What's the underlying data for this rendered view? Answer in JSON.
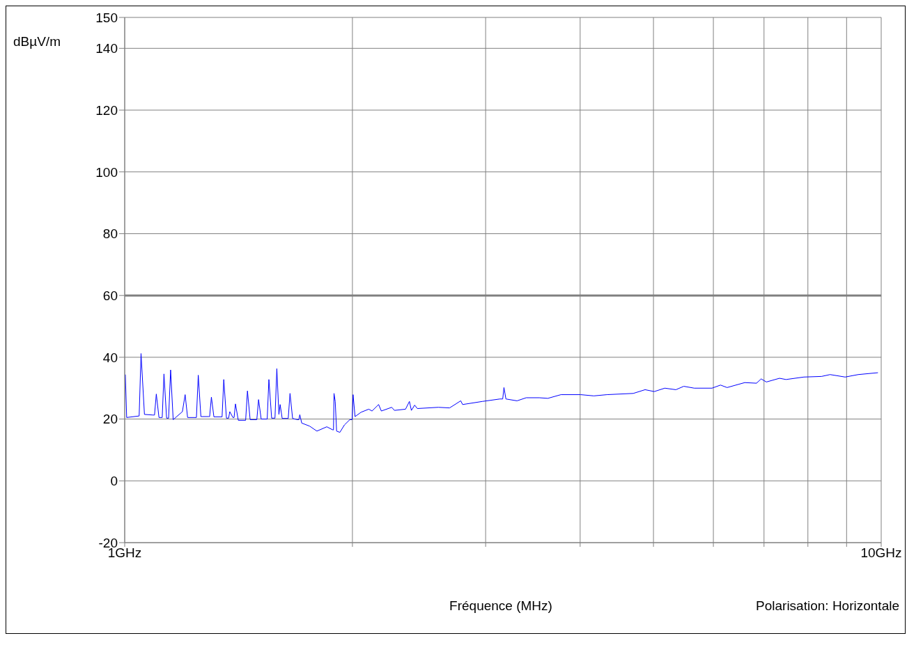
{
  "chart_data": {
    "type": "line",
    "xlabel": "Fréquence (MHz)",
    "ylabel": "dBµV/m",
    "annotations": [
      "Polarisation: Horizontale"
    ],
    "log": "x",
    "grid": true,
    "xlim": [
      1,
      10
    ],
    "xticks": [
      {
        "value": 1,
        "label": "1GHz"
      },
      {
        "value": 2,
        "label": null
      },
      {
        "value": 3,
        "label": null
      },
      {
        "value": 4,
        "label": null
      },
      {
        "value": 5,
        "label": null
      },
      {
        "value": 6,
        "label": null
      },
      {
        "value": 7,
        "label": null
      },
      {
        "value": 8,
        "label": null
      },
      {
        "value": 9,
        "label": null
      },
      {
        "value": 10,
        "label": "10GHz"
      }
    ],
    "ylim": [
      -20,
      150
    ],
    "yticks": [
      -20,
      0,
      20,
      40,
      60,
      80,
      100,
      120,
      140,
      150
    ],
    "ref_lines": [
      {
        "axis": "y",
        "value": 60,
        "color": "#808080"
      }
    ],
    "series": [
      {
        "color": "#0000ff",
        "x": [
          1.002,
          1.006,
          1.045,
          1.051,
          1.062,
          1.09,
          1.095,
          1.101,
          1.11,
          1.121,
          1.127,
          1.136,
          1.143,
          1.15,
          1.159,
          1.192,
          1.202,
          1.211,
          1.244,
          1.251,
          1.261,
          1.291,
          1.295,
          1.302,
          1.312,
          1.345,
          1.352,
          1.363,
          1.372,
          1.377,
          1.39,
          1.395,
          1.401,
          1.413,
          1.445,
          1.453,
          1.465,
          1.495,
          1.503,
          1.515,
          1.543,
          1.551,
          1.564,
          1.58,
          1.589,
          1.599,
          1.605,
          1.615,
          1.645,
          1.654,
          1.667,
          1.691,
          1.699,
          1.704,
          1.714,
          1.756,
          1.795,
          1.85,
          1.884,
          1.888,
          1.891,
          1.898,
          1.906,
          1.925,
          1.952,
          1.984,
          1.998,
          2.004,
          2.016,
          2.053,
          2.102,
          2.123,
          2.166,
          2.184,
          2.254,
          2.273,
          2.351,
          2.379,
          2.393,
          2.417,
          2.437,
          2.598,
          2.688,
          2.781,
          2.797,
          2.97,
          3.134,
          3.16,
          3.172,
          3.191,
          3.301,
          3.394,
          3.532,
          3.625,
          3.773,
          4.006,
          4.17,
          4.341,
          4.702,
          4.874,
          5.012,
          5.175,
          5.353,
          5.483,
          5.661,
          5.975,
          6.132,
          6.256,
          6.601,
          6.842,
          6.939,
          7.051,
          7.338,
          7.485,
          7.902,
          8.34,
          8.559,
          8.961,
          9.325,
          9.901
        ],
        "values": [
          34.4,
          20.5,
          21.0,
          41.2,
          21.5,
          21.3,
          21.3,
          28.1,
          20.5,
          20.5,
          34.6,
          20.3,
          20.3,
          35.9,
          19.8,
          22.4,
          27.9,
          20.5,
          20.5,
          34.2,
          20.8,
          20.8,
          20.8,
          27.1,
          20.7,
          20.7,
          32.8,
          20.3,
          20.3,
          22.4,
          20.5,
          20.5,
          24.9,
          19.6,
          19.6,
          29.1,
          19.8,
          19.8,
          26.3,
          20.0,
          20.0,
          32.8,
          20.3,
          20.3,
          36.3,
          21.5,
          24.7,
          20.2,
          20.2,
          28.3,
          20.2,
          19.8,
          19.8,
          21.4,
          18.7,
          17.7,
          16.1,
          17.5,
          16.5,
          16.5,
          28.3,
          25.7,
          16.1,
          15.7,
          18.1,
          19.8,
          19.8,
          27.9,
          20.8,
          22.2,
          23.2,
          22.6,
          24.7,
          22.6,
          23.8,
          22.8,
          23.2,
          25.7,
          22.8,
          24.5,
          23.4,
          23.8,
          23.6,
          25.9,
          24.7,
          25.7,
          26.5,
          26.5,
          30.2,
          26.5,
          25.9,
          26.9,
          26.9,
          26.7,
          27.9,
          27.9,
          27.5,
          27.9,
          28.3,
          29.5,
          28.9,
          30.0,
          29.5,
          30.6,
          30.0,
          30.0,
          31.0,
          30.2,
          31.8,
          31.6,
          33.0,
          32.0,
          33.2,
          32.8,
          33.6,
          33.8,
          34.4,
          33.6,
          34.4,
          35.0
        ]
      }
    ]
  }
}
